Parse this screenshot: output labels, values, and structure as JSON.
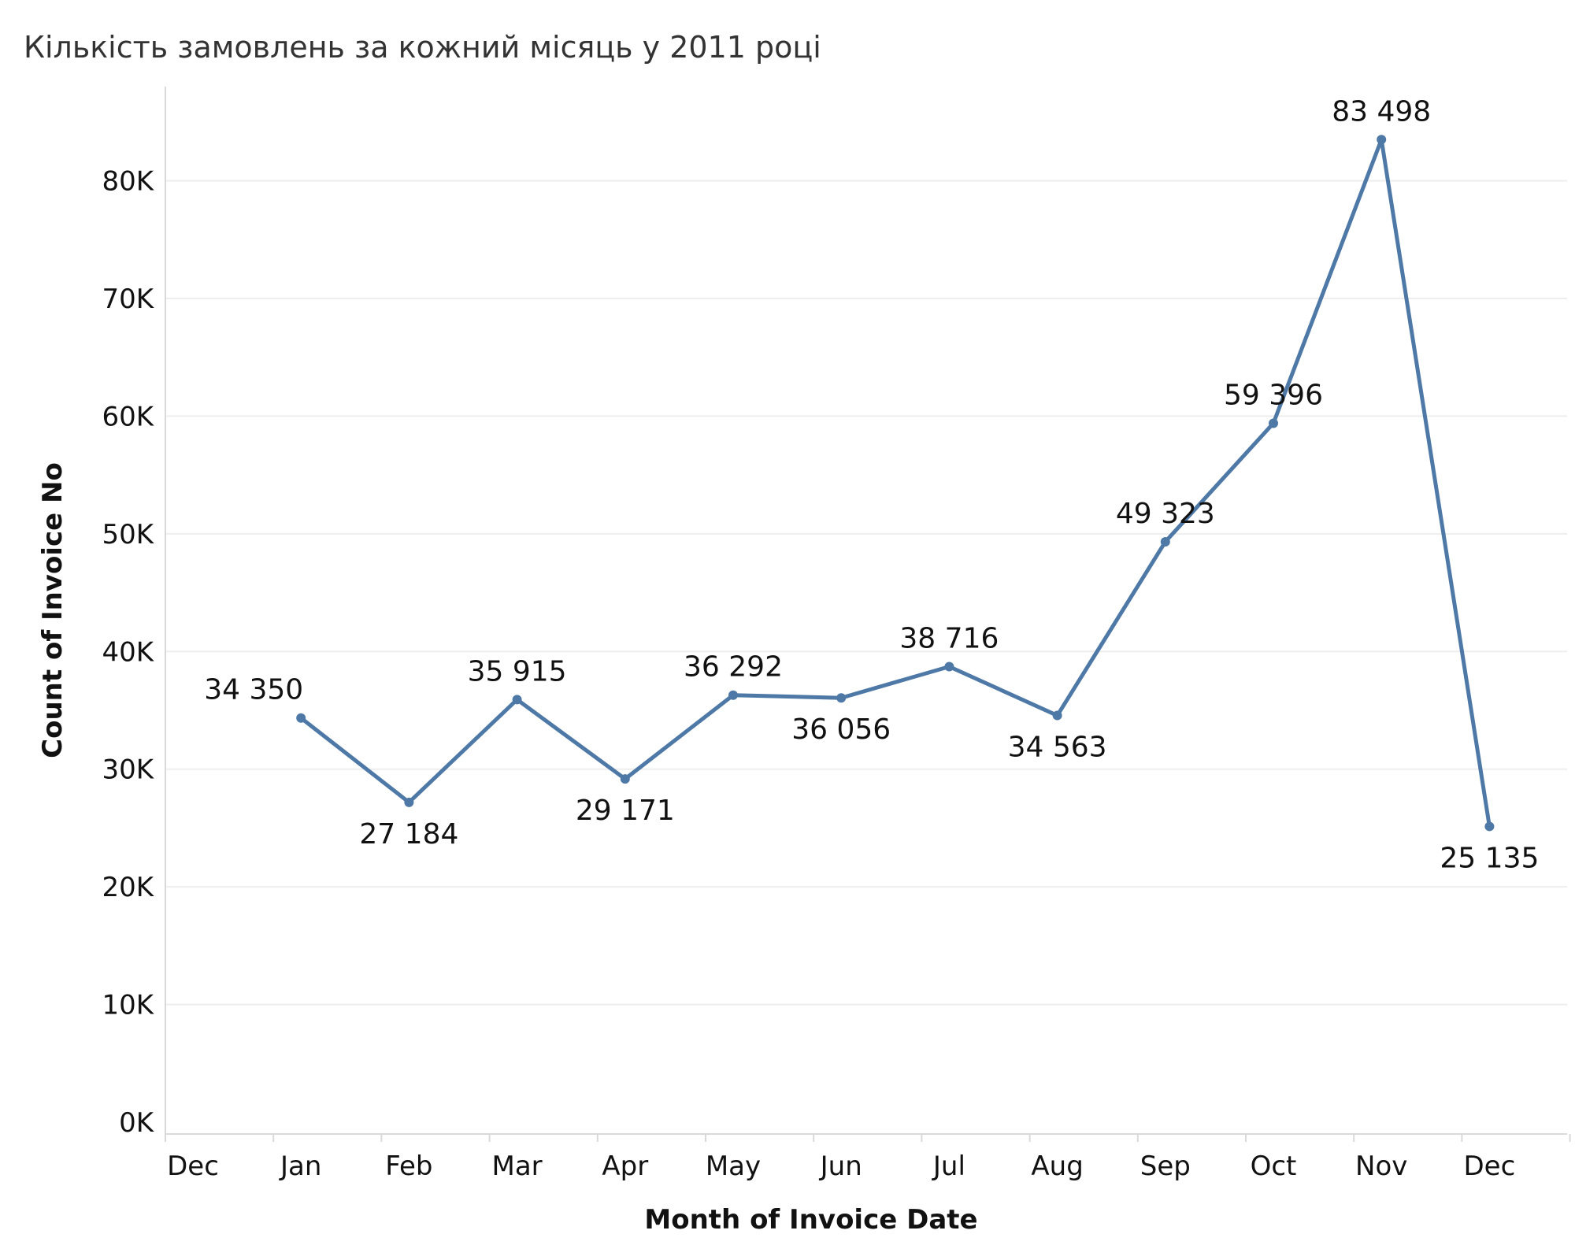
{
  "chart_data": {
    "type": "line",
    "title": "Кількість замовлень за кожний місяць у 2011 році",
    "xlabel": "Month of Invoice Date",
    "ylabel": "Count of Invoice No",
    "x": [
      "2010-12",
      "2011-01",
      "2011-02",
      "2011-03",
      "2011-04",
      "2011-05",
      "2011-06",
      "2011-07",
      "2011-08",
      "2011-09",
      "2011-10",
      "2011-11",
      "2011-12"
    ],
    "x_tick_labels": [
      "Dec",
      "Jan",
      "Feb",
      "Mar",
      "Apr",
      "May",
      "Jun",
      "Jul",
      "Aug",
      "Sep",
      "Oct",
      "Nov",
      "Dec",
      "Jan"
    ],
    "series": [
      {
        "x": [
          "2011-01",
          "2011-02",
          "2011-03",
          "2011-04",
          "2011-05",
          "2011-06",
          "2011-07",
          "2011-08",
          "2011-09",
          "2011-10",
          "2011-11",
          "2011-12"
        ],
        "values": [
          34350,
          27184,
          35915,
          29171,
          36292,
          36056,
          38716,
          34563,
          49323,
          59396,
          83498,
          25135
        ],
        "labels": [
          "34 350",
          "27 184",
          "35 915",
          "29 171",
          "36 292",
          "36 056",
          "38 716",
          "34 563",
          "49 323",
          "59 396",
          "83 498",
          "25 135"
        ],
        "color": "#4e79a7"
      }
    ],
    "y_tick_labels": [
      "0K",
      "10K",
      "20K",
      "30K",
      "40K",
      "50K",
      "60K",
      "70K",
      "80K"
    ],
    "ylim": [
      -1000,
      88000
    ],
    "grid": true,
    "colors": {
      "line": "#4e79a7",
      "grid": "#eeeeee",
      "axis": "#d9d9d9",
      "text": "#111111"
    }
  }
}
